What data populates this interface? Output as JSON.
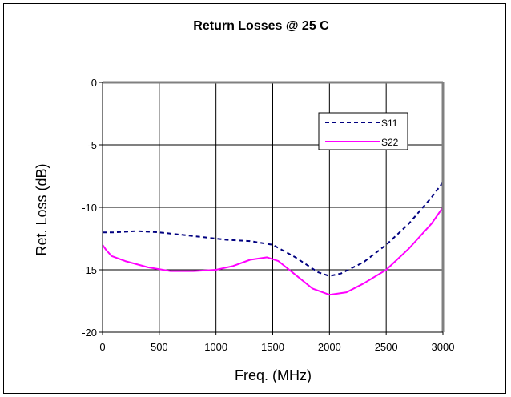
{
  "chart_data": {
    "type": "line",
    "title": "Return Losses @ 25 C",
    "xlabel": "Freq. (MHz)",
    "ylabel": "Ret. Loss (dB)",
    "xlim": [
      0,
      3000
    ],
    "ylim": [
      -20,
      0
    ],
    "xticks": [
      0,
      500,
      1000,
      1500,
      2000,
      2500,
      3000
    ],
    "yticks": [
      0,
      -5,
      -10,
      -15,
      -20
    ],
    "grid": true,
    "legend_position": "top-right",
    "series": [
      {
        "name": "S11",
        "color": "#000080",
        "style": "dashed",
        "x": [
          0,
          100,
          300,
          500,
          700,
          900,
          1100,
          1300,
          1500,
          1700,
          1900,
          2000,
          2100,
          2300,
          2500,
          2700,
          2900,
          3000
        ],
        "y": [
          -12,
          -12,
          -11.9,
          -12,
          -12.2,
          -12.4,
          -12.6,
          -12.7,
          -13.0,
          -14.0,
          -15.2,
          -15.5,
          -15.3,
          -14.4,
          -13.0,
          -11.3,
          -9.2,
          -8.0
        ]
      },
      {
        "name": "S22",
        "color": "#ff00ff",
        "style": "solid",
        "x": [
          0,
          30,
          80,
          200,
          400,
          600,
          800,
          1000,
          1150,
          1300,
          1450,
          1550,
          1700,
          1850,
          2000,
          2150,
          2300,
          2500,
          2700,
          2900,
          3000
        ],
        "y": [
          -13.0,
          -13.4,
          -13.9,
          -14.3,
          -14.8,
          -15.1,
          -15.1,
          -15.0,
          -14.7,
          -14.2,
          -14.0,
          -14.3,
          -15.4,
          -16.5,
          -17.0,
          -16.8,
          -16.1,
          -15.0,
          -13.3,
          -11.3,
          -10.0
        ]
      }
    ]
  }
}
